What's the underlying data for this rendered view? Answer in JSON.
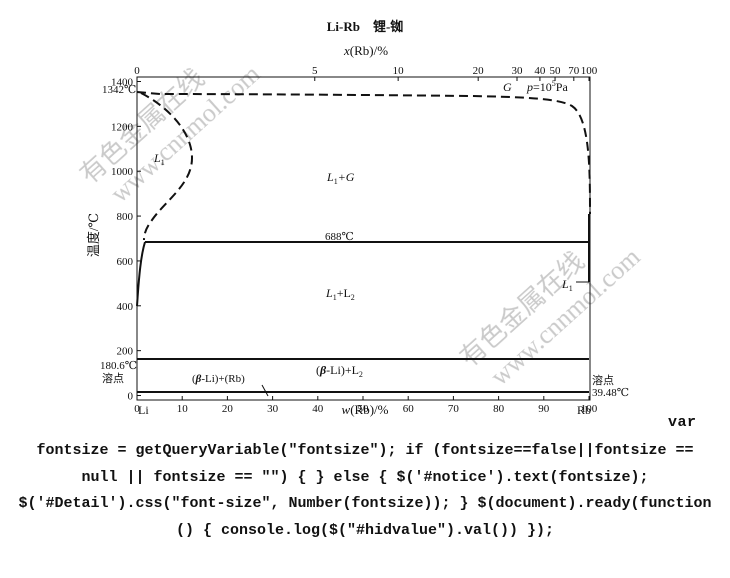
{
  "diagram": {
    "title": "Li-Rb　锂-铷",
    "top_axis_label_sym": "x",
    "top_axis_label_rest": "(Rb)/%",
    "bottom_axis_label_sym": "w",
    "bottom_axis_label_rest": "(Rb)/%",
    "y_axis_label": "温度/℃",
    "left_element": "Li",
    "right_element": "Rb",
    "y_ticks": [
      "0",
      "200",
      "400",
      "600",
      "800",
      "1000",
      "1200",
      "1400"
    ],
    "y_tick_values": [
      0,
      200,
      400,
      600,
      800,
      1000,
      1200,
      1400
    ],
    "x_ticks": [
      "0",
      "10",
      "20",
      "30",
      "40",
      "50",
      "60",
      "70",
      "80",
      "90",
      "100"
    ],
    "x_tick_values": [
      0,
      10,
      20,
      30,
      40,
      50,
      60,
      70,
      80,
      90,
      100
    ],
    "top_ticks": [
      "0",
      "5",
      "10",
      "20",
      "30",
      "40",
      "50",
      "70",
      "100"
    ],
    "boiling_point_label": "1342℃",
    "li_melting_label": "180.6℃",
    "li_melting_caption": "溶点",
    "rb_melting_label": "39.48℃",
    "rb_melting_caption": "溶点",
    "monotectic_label": "688℃",
    "gas_region": "G",
    "pressure_sym": "p",
    "pressure_value": "=10",
    "pressure_exp": "5",
    "pressure_unit": "Pa",
    "region_L1_left": "L",
    "region_L1_left_sub": "1",
    "region_L1_G_a": "L",
    "region_L1_G_sub": "1",
    "region_L1_G_b": "+G",
    "region_L1_L2_a": "L",
    "region_L1_L2_sub1": "1",
    "region_L1_L2_b": "+L",
    "region_L1_L2_sub2": "2",
    "region_beta_L2_a": "(",
    "region_beta_L2_beta": "β",
    "region_beta_L2_b": "-Li)+L",
    "region_beta_L2_sub": "2",
    "region_beta_Rb_a": "(",
    "region_beta_Rb_beta": "β",
    "region_beta_Rb_b": "-Li)+(Rb)",
    "region_L1_right": "L",
    "region_L1_right_sub": "1",
    "isotherms_c": [
      688,
      180.6,
      39.48
    ],
    "boiling_temperature_c": 1342,
    "pressure_pa": 100000
  },
  "watermark": {
    "line1": "有色金属在线",
    "line2": "www.cnnmol.com"
  },
  "code": {
    "trailing": "var",
    "lines": [
      "fontsize = getQueryVariable(\"fontsize\"); if (fontsize==false||fontsize ==",
      "null || fontsize == \"\") { } else { $('#notice').text(fontsize);",
      "$('#Detail').css(\"font-size\", Number(fontsize)); } $(document).ready(function",
      "() { console.log($(\"#hidvalue\").val()) });"
    ]
  }
}
